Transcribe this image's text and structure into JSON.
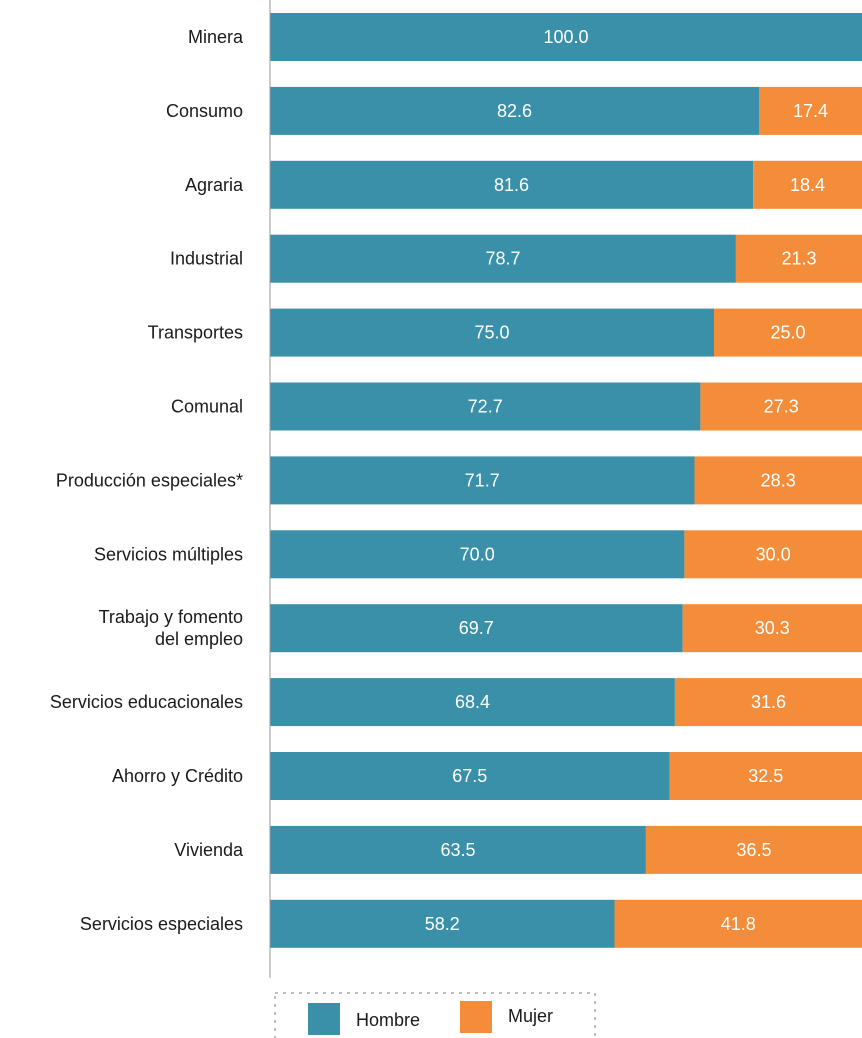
{
  "chart_data": {
    "type": "bar",
    "orientation": "horizontal",
    "stacked": true,
    "categories": [
      [
        "Minera"
      ],
      [
        "Consumo"
      ],
      [
        "Agraria"
      ],
      [
        "Industrial"
      ],
      [
        "Transportes"
      ],
      [
        "Comunal"
      ],
      [
        "Producción especiales*"
      ],
      [
        "Servicios múltiples"
      ],
      [
        "Trabajo y fomento",
        "del empleo"
      ],
      [
        "Servicios educacionales"
      ],
      [
        "Ahorro y Crédito"
      ],
      [
        "Vivienda"
      ],
      [
        "Servicios especiales"
      ]
    ],
    "series": [
      {
        "name": "Hombre",
        "color": "#3a8fa9",
        "values": [
          100.0,
          82.6,
          81.6,
          78.7,
          75.0,
          72.7,
          71.7,
          70.0,
          69.7,
          68.4,
          67.5,
          63.5,
          58.2
        ],
        "labels": [
          "100.0",
          "82.6",
          "81.6",
          "78.7",
          "75.0",
          "72.7",
          "71.7",
          "70.0",
          "69.7",
          "68.4",
          "67.5",
          "63.5",
          "58.2"
        ]
      },
      {
        "name": "Mujer",
        "color": "#f48d3a",
        "values": [
          0,
          17.4,
          18.4,
          21.3,
          25.0,
          27.3,
          28.3,
          30.0,
          30.3,
          31.6,
          32.5,
          36.5,
          41.8
        ],
        "labels": [
          "",
          "17.4",
          "18.4",
          "21.3",
          "25.0",
          "27.3",
          "28.3",
          "30.0",
          "30.3",
          "31.6",
          "32.5",
          "36.5",
          "41.8"
        ]
      }
    ],
    "xlim": [
      0,
      100
    ],
    "grid": false,
    "legend": {
      "position": "bottom",
      "entries": [
        "Hombre",
        "Mujer"
      ]
    }
  }
}
